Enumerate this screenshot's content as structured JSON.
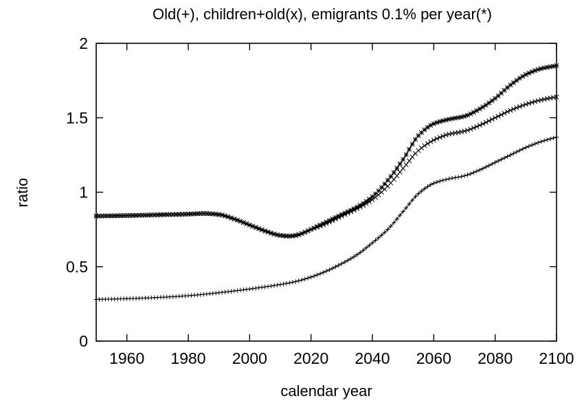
{
  "chart_data": {
    "type": "line",
    "title": "Old(+), children+old(x), emigrants 0.1% per year(*)",
    "xlabel": "calendar year",
    "ylabel": "ratio",
    "xlim": [
      1950,
      2100
    ],
    "ylim": [
      0,
      2
    ],
    "xticks": [
      1960,
      1980,
      2000,
      2020,
      2040,
      2060,
      2080,
      2100
    ],
    "yticks": [
      0,
      0.5,
      1,
      1.5,
      2
    ],
    "x_tick_labels": [
      "1960",
      "1980",
      "2000",
      "2020",
      "2040",
      "2060",
      "2080",
      "2100"
    ],
    "y_tick_labels": [
      "0",
      "0.5",
      "1",
      "1.5",
      "2"
    ],
    "grid": false,
    "legend": "none",
    "marker_step_years": 1,
    "series": [
      {
        "marker": "plus",
        "x": [
          1950,
          1960,
          1970,
          1980,
          1990,
          2000,
          2010,
          2015,
          2020,
          2025,
          2030,
          2035,
          2040,
          2045,
          2050,
          2055,
          2060,
          2065,
          2070,
          2075,
          2080,
          2085,
          2090,
          2095,
          2100
        ],
        "values": [
          0.28,
          0.285,
          0.293,
          0.305,
          0.325,
          0.35,
          0.38,
          0.4,
          0.43,
          0.47,
          0.52,
          0.58,
          0.66,
          0.75,
          0.87,
          0.99,
          1.06,
          1.09,
          1.11,
          1.15,
          1.2,
          1.25,
          1.3,
          1.34,
          1.37
        ]
      },
      {
        "marker": "cross",
        "x": [
          1950,
          1960,
          1970,
          1980,
          1985,
          1990,
          1995,
          2000,
          2005,
          2010,
          2013,
          2015,
          2020,
          2025,
          2030,
          2035,
          2040,
          2045,
          2050,
          2055,
          2060,
          2065,
          2070,
          2075,
          2080,
          2085,
          2090,
          2095,
          2100
        ],
        "values": [
          0.84,
          0.843,
          0.848,
          0.853,
          0.857,
          0.85,
          0.82,
          0.78,
          0.74,
          0.71,
          0.705,
          0.71,
          0.75,
          0.79,
          0.84,
          0.89,
          0.95,
          1.04,
          1.16,
          1.28,
          1.35,
          1.39,
          1.41,
          1.45,
          1.5,
          1.55,
          1.59,
          1.62,
          1.64
        ]
      },
      {
        "marker": "star",
        "x": [
          1950,
          1960,
          1970,
          1980,
          1985,
          1990,
          1995,
          2000,
          2005,
          2010,
          2013,
          2015,
          2020,
          2025,
          2030,
          2035,
          2040,
          2045,
          2050,
          2055,
          2060,
          2065,
          2070,
          2075,
          2080,
          2085,
          2090,
          2095,
          2100
        ],
        "values": [
          0.84,
          0.843,
          0.848,
          0.853,
          0.857,
          0.85,
          0.82,
          0.78,
          0.74,
          0.71,
          0.705,
          0.71,
          0.75,
          0.8,
          0.85,
          0.9,
          0.97,
          1.08,
          1.22,
          1.38,
          1.46,
          1.49,
          1.51,
          1.56,
          1.63,
          1.72,
          1.79,
          1.83,
          1.85
        ]
      }
    ]
  }
}
